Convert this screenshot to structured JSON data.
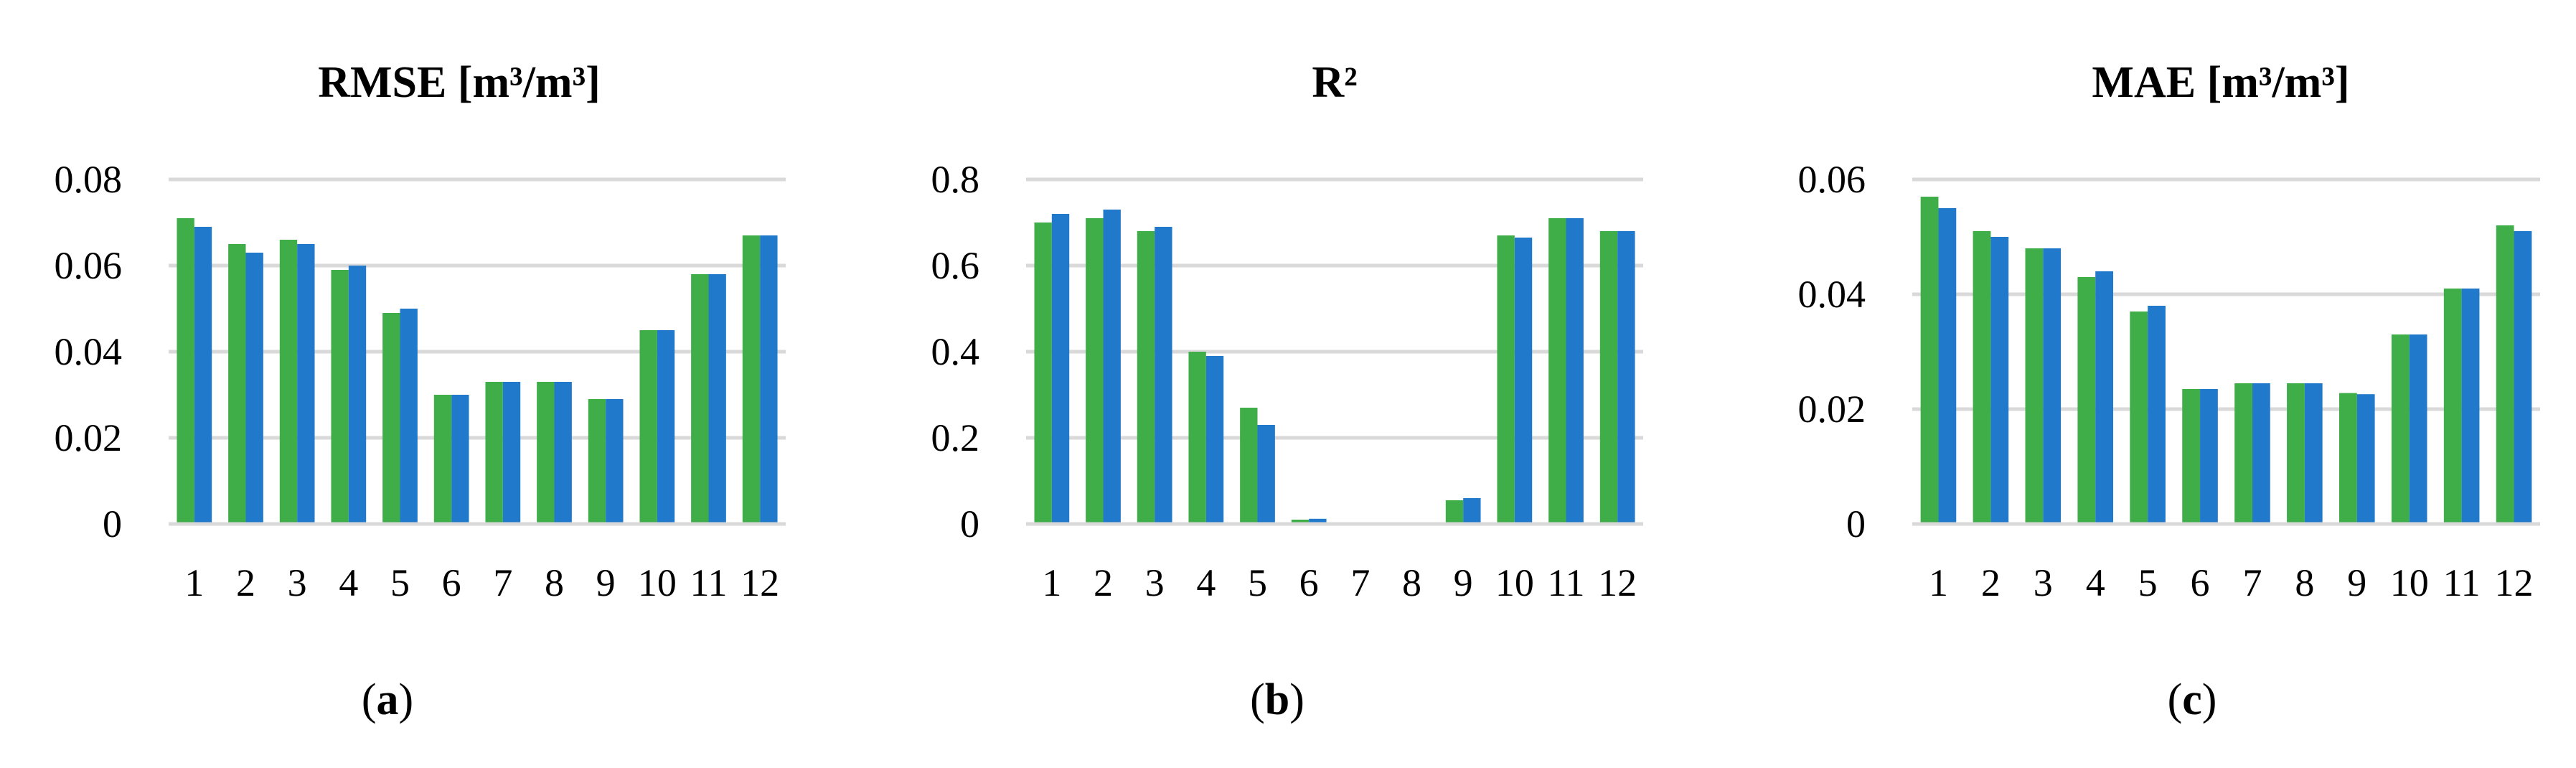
{
  "colors": {
    "series_a": "#3FAE49",
    "series_b": "#2179CC",
    "grid": "#D9D9D9"
  },
  "chart_data": [
    {
      "type": "bar",
      "title": "RMSE [m³/m³]",
      "caption_letter": "a",
      "categories": [
        "1",
        "2",
        "3",
        "4",
        "5",
        "6",
        "7",
        "8",
        "9",
        "10",
        "11",
        "12"
      ],
      "yticks": [
        "0",
        "0.02",
        "0.04",
        "0.06",
        "0.08"
      ],
      "ylim": [
        0,
        0.08
      ],
      "grid": true,
      "legend": "none",
      "series": [
        {
          "values": [
            0.071,
            0.065,
            0.066,
            0.059,
            0.049,
            0.03,
            0.033,
            0.033,
            0.029,
            0.045,
            0.058,
            0.067
          ]
        },
        {
          "values": [
            0.069,
            0.063,
            0.065,
            0.06,
            0.05,
            0.03,
            0.033,
            0.033,
            0.029,
            0.045,
            0.058,
            0.067
          ]
        }
      ]
    },
    {
      "type": "bar",
      "title": "R²",
      "caption_letter": "b",
      "categories": [
        "1",
        "2",
        "3",
        "4",
        "5",
        "6",
        "7",
        "8",
        "9",
        "10",
        "11",
        "12"
      ],
      "yticks": [
        "0",
        "0.2",
        "0.4",
        "0.6",
        "0.8"
      ],
      "ylim": [
        0,
        0.8
      ],
      "grid": true,
      "legend": "none",
      "series": [
        {
          "values": [
            0.7,
            0.71,
            0.68,
            0.4,
            0.27,
            0.01,
            0.0,
            0.0,
            0.055,
            0.67,
            0.71,
            0.68
          ]
        },
        {
          "values": [
            0.72,
            0.73,
            0.69,
            0.39,
            0.23,
            0.012,
            0.0,
            0.0,
            0.06,
            0.665,
            0.71,
            0.68
          ]
        }
      ]
    },
    {
      "type": "bar",
      "title": "MAE [m³/m³]",
      "caption_letter": "c",
      "categories": [
        "1",
        "2",
        "3",
        "4",
        "5",
        "6",
        "7",
        "8",
        "9",
        "10",
        "11",
        "12"
      ],
      "yticks": [
        "0",
        "0.02",
        "0.04",
        "0.06"
      ],
      "ylim": [
        0,
        0.06
      ],
      "grid": true,
      "legend": "none",
      "series": [
        {
          "values": [
            0.057,
            0.051,
            0.048,
            0.043,
            0.037,
            0.0235,
            0.0245,
            0.0245,
            0.0228,
            0.033,
            0.041,
            0.052
          ]
        },
        {
          "values": [
            0.055,
            0.05,
            0.048,
            0.044,
            0.038,
            0.0235,
            0.0245,
            0.0245,
            0.0226,
            0.033,
            0.041,
            0.051
          ]
        }
      ]
    }
  ]
}
